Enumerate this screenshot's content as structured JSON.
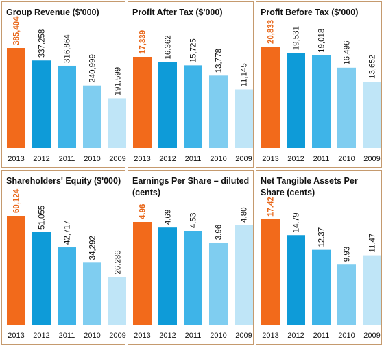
{
  "colors": {
    "panel_border": "#c59a6e",
    "highlight_bar": "#f26a1b",
    "highlight_label": "#e8671a",
    "bar_shades": [
      "#0e9bd8",
      "#3eb4e8",
      "#7fcdf0",
      "#bfe5f7"
    ],
    "text": "#111111"
  },
  "chart_data": [
    {
      "type": "bar",
      "title": "Group Revenue ($'000)",
      "categories": [
        "2013",
        "2012",
        "2011",
        "2010",
        "2009"
      ],
      "values": [
        385404,
        337258,
        316864,
        240999,
        191599
      ],
      "value_labels": [
        "385,404",
        "337,258",
        "316,864",
        "240,999",
        "191,599"
      ],
      "ylim": [
        0,
        385404
      ],
      "highlight_index": 0
    },
    {
      "type": "bar",
      "title": "Profit After Tax ($'000)",
      "categories": [
        "2013",
        "2012",
        "2011",
        "2010",
        "2009"
      ],
      "values": [
        17339,
        16362,
        15725,
        13778,
        11145
      ],
      "value_labels": [
        "17,339",
        "16,362",
        "15,725",
        "13,778",
        "11,145"
      ],
      "ylim": [
        0,
        17339
      ],
      "highlight_index": 0
    },
    {
      "type": "bar",
      "title": "Profit Before Tax ($'000)",
      "categories": [
        "2013",
        "2012",
        "2011",
        "2010",
        "2009"
      ],
      "values": [
        20833,
        19531,
        19018,
        16496,
        13652
      ],
      "value_labels": [
        "20,833",
        "19,531",
        "19,018",
        "16,496",
        "13,652"
      ],
      "ylim": [
        0,
        20833
      ],
      "highlight_index": 0
    },
    {
      "type": "bar",
      "title": "Shareholders' Equity ($'000)",
      "categories": [
        "2013",
        "2012",
        "2011",
        "2010",
        "2009"
      ],
      "values": [
        60124,
        51055,
        42717,
        34292,
        26286
      ],
      "value_labels": [
        "60,124",
        "51,055",
        "42,717",
        "34,292",
        "26,286"
      ],
      "ylim": [
        0,
        60124
      ],
      "highlight_index": 0
    },
    {
      "type": "bar",
      "title": "Earnings Per Share – diluted (cents)",
      "categories": [
        "2013",
        "2012",
        "2011",
        "2010",
        "2009"
      ],
      "values": [
        4.96,
        4.69,
        4.53,
        3.96,
        4.8
      ],
      "value_labels": [
        "4.96",
        "4.69",
        "4.53",
        "3.96",
        "4.80"
      ],
      "ylim": [
        0,
        4.96
      ],
      "highlight_index": 0
    },
    {
      "type": "bar",
      "title": "Net Tangible Assets Per Share (cents)",
      "categories": [
        "2013",
        "2012",
        "2011",
        "2010",
        "2009"
      ],
      "values": [
        17.42,
        14.79,
        12.37,
        9.93,
        11.47
      ],
      "value_labels": [
        "17.42",
        "14.79",
        "12.37",
        "9.93",
        "11.47"
      ],
      "ylim": [
        0,
        17.42
      ],
      "highlight_index": 0
    }
  ]
}
